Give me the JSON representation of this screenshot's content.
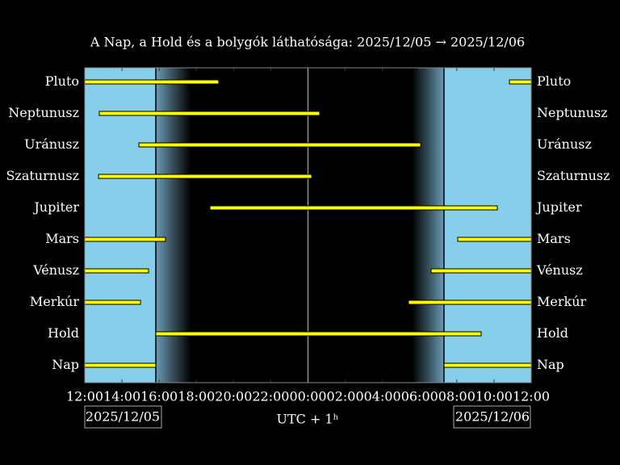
{
  "chart_data": {
    "type": "range-bar",
    "title": "A Nap, a Hold és a bolygók láthatósága: 2025/12/05 → 2025/12/06",
    "xlabel": "UTC + 1ʰ",
    "start_date": "2025/12/05",
    "end_date": "2025/12/06",
    "categories": [
      "Pluto",
      "Neptunusz",
      "Uránusz",
      "Szaturnusz",
      "Jupiter",
      "Mars",
      "Vénusz",
      "Merkúr",
      "Hold",
      "Nap"
    ],
    "ranges": [
      [
        [
          12,
          19.2
        ],
        [
          34.83,
          36
        ]
      ],
      [
        [
          12.78,
          24.63
        ]
      ],
      [
        [
          14.91,
          30.06
        ]
      ],
      [
        [
          12.74,
          24.2
        ]
      ],
      [
        [
          18.73,
          34.18
        ]
      ],
      [
        [
          12,
          16.34
        ],
        [
          32.05,
          36
        ]
      ],
      [
        [
          12,
          15.43
        ],
        [
          30.62,
          36
        ]
      ],
      [
        [
          12,
          15.0
        ],
        [
          29.4,
          36
        ]
      ],
      [
        [
          15.82,
          33.31
        ]
      ],
      [
        [
          12,
          15.82
        ],
        [
          31.31,
          36
        ]
      ]
    ],
    "color": "#ffff00",
    "daylight_end": 15.82,
    "darkness_start": 17.7,
    "darkness_end": 29.6,
    "daylight_start": 31.31,
    "xlim": [
      12,
      36
    ],
    "xticks": [
      {
        "value": 12,
        "label": "12:00"
      },
      {
        "value": 14,
        "label": "14:00"
      },
      {
        "value": 16,
        "label": "16:00"
      },
      {
        "value": 18,
        "label": "18:00"
      },
      {
        "value": 20,
        "label": "20:00"
      },
      {
        "value": 22,
        "label": "22:00"
      },
      {
        "value": 24,
        "label": "00:00"
      },
      {
        "value": 26,
        "label": "02:00"
      },
      {
        "value": 28,
        "label": "04:00"
      },
      {
        "value": 30,
        "label": "06:00"
      },
      {
        "value": 32,
        "label": "08:00"
      },
      {
        "value": 34,
        "label": "10:00"
      },
      {
        "value": 36,
        "label": "12:00"
      }
    ]
  }
}
